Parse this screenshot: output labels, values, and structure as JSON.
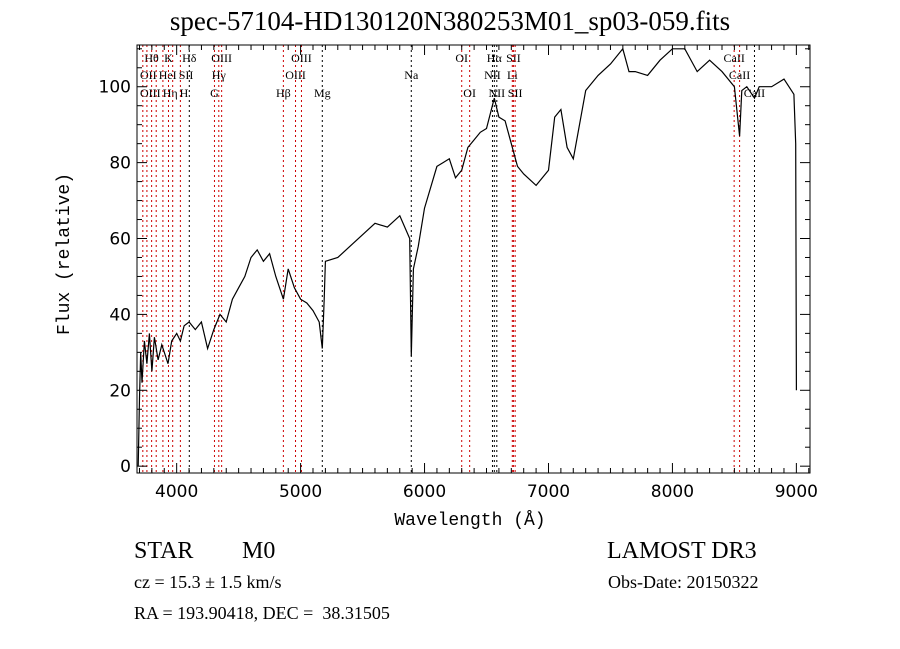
{
  "chart_data": {
    "type": "line",
    "title": "spec-57104-HD130120N380253M01_sp03-059.fits",
    "xlabel": "Wavelength (Å)",
    "ylabel": "Flux (relative)",
    "xlim": [
      3680,
      9110
    ],
    "ylim": [
      -1.8,
      111
    ],
    "xticks": [
      4000,
      5000,
      6000,
      7000,
      8000,
      9000
    ],
    "yticks": [
      0,
      20,
      40,
      60,
      80,
      100
    ],
    "grid": false,
    "series": [
      {
        "name": "spectrum",
        "color": "#000000",
        "x": [
          3690,
          3700,
          3710,
          3720,
          3740,
          3760,
          3780,
          3800,
          3820,
          3850,
          3880,
          3900,
          3930,
          3960,
          4000,
          4030,
          4060,
          4100,
          4150,
          4200,
          4250,
          4300,
          4350,
          4400,
          4450,
          4500,
          4550,
          4600,
          4650,
          4700,
          4750,
          4800,
          4861,
          4900,
          4950,
          5000,
          5050,
          5100,
          5150,
          5175,
          5190,
          5200,
          5300,
          5400,
          5500,
          5600,
          5700,
          5800,
          5880,
          5893,
          5910,
          5950,
          6000,
          6100,
          6150,
          6200,
          6250,
          6300,
          6350,
          6400,
          6450,
          6500,
          6563,
          6600,
          6650,
          6700,
          6750,
          6800,
          6900,
          7000,
          7050,
          7100,
          7150,
          7200,
          7250,
          7300,
          7400,
          7500,
          7600,
          7650,
          7700,
          7800,
          7900,
          8000,
          8100,
          8200,
          8300,
          8400,
          8500,
          8542,
          8560,
          8600,
          8662,
          8700,
          8800,
          8900,
          8980,
          8995,
          9000
        ],
        "y": [
          0,
          18,
          30,
          22,
          33,
          27,
          35,
          25,
          34,
          28,
          32,
          30,
          27,
          33,
          35,
          33,
          37,
          38,
          36,
          38,
          31,
          36,
          40,
          38,
          44,
          47,
          50,
          55,
          57,
          54,
          56,
          50,
          44,
          52,
          47,
          44,
          43,
          41,
          38,
          31,
          44,
          54,
          55,
          58,
          61,
          64,
          63,
          66,
          60,
          29,
          52,
          58,
          68,
          79,
          80,
          81,
          76,
          78,
          84,
          86,
          88,
          89,
          97,
          92,
          91,
          85,
          79,
          77,
          74,
          78,
          92,
          94,
          84,
          81,
          90,
          99,
          103,
          106,
          110,
          104,
          104,
          103,
          107,
          110,
          110,
          104,
          107,
          104,
          100,
          87,
          99,
          100,
          97,
          100,
          100,
          102,
          98,
          85,
          20
        ]
      }
    ],
    "lines": [
      {
        "name": "OII",
        "wave": 3727,
        "color": "#cc0000",
        "row": 1
      },
      {
        "name": "Hθ",
        "wave": 3798,
        "color": "#cc0000",
        "row": 0
      },
      {
        "name": "OIII",
        "wave": 3760,
        "color": "#cc0000",
        "row": 2
      },
      {
        "name": "Hη",
        "wave": 3835,
        "color": "#cc0000",
        "row": 2
      },
      {
        "name": "HeI",
        "wave": 3889,
        "color": "#cc0000",
        "row": 1
      },
      {
        "name": "K",
        "wave": 3934,
        "color": "#cc0000",
        "row": 0
      },
      {
        "name": "H",
        "wave": 3968,
        "color": "#cc0000",
        "row": 2
      },
      {
        "name": "SII",
        "wave": 4030,
        "color": "#cc0000",
        "row": 1
      },
      {
        "name": "Hδ",
        "wave": 4102,
        "color": "#000000",
        "row": 0
      },
      {
        "name": "G",
        "wave": 4305,
        "color": "#cc0000",
        "row": 2
      },
      {
        "name": "Hγ",
        "wave": 4340,
        "color": "#cc0000",
        "row": 1
      },
      {
        "name": "OIII",
        "wave": 4363,
        "color": "#cc0000",
        "row": 0
      },
      {
        "name": "Hβ",
        "wave": 4861,
        "color": "#cc0000",
        "row": 2
      },
      {
        "name": "OIII",
        "wave": 4959,
        "color": "#cc0000",
        "row": 1
      },
      {
        "name": "OIII",
        "wave": 5007,
        "color": "#cc0000",
        "row": 0
      },
      {
        "name": "Mg",
        "wave": 5175,
        "color": "#000000",
        "row": 2
      },
      {
        "name": "Na",
        "wave": 5893,
        "color": "#000000",
        "row": 1
      },
      {
        "name": "OI",
        "wave": 6300,
        "color": "#cc0000",
        "row": 0
      },
      {
        "name": "OI",
        "wave": 6364,
        "color": "#cc0000",
        "row": 2
      },
      {
        "name": "NII",
        "wave": 6548,
        "color": "#000000",
        "row": 1
      },
      {
        "name": "Hα",
        "wave": 6563,
        "color": "#000000",
        "row": 0
      },
      {
        "name": "NII",
        "wave": 6583,
        "color": "#000000",
        "row": 2
      },
      {
        "name": "Li",
        "wave": 6708,
        "color": "#cc0000",
        "row": 1
      },
      {
        "name": "SII",
        "wave": 6717,
        "color": "#cc0000",
        "row": 0
      },
      {
        "name": "SII",
        "wave": 6731,
        "color": "#cc0000",
        "row": 2
      },
      {
        "name": "CaII",
        "wave": 8498,
        "color": "#cc0000",
        "row": 0
      },
      {
        "name": "CaII",
        "wave": 8542,
        "color": "#cc0000",
        "row": 1
      },
      {
        "name": "CaII",
        "wave": 8662,
        "color": "#000000",
        "row": 2
      }
    ]
  },
  "info": {
    "object": "STAR",
    "subclass": "M0",
    "survey": "LAMOST DR3",
    "cz": "cz = 15.3 ± 1.5 km/s",
    "obs_date": "Obs-Date: 20150322",
    "coords": "RA = 193.90418, DEC =  38.31505"
  }
}
